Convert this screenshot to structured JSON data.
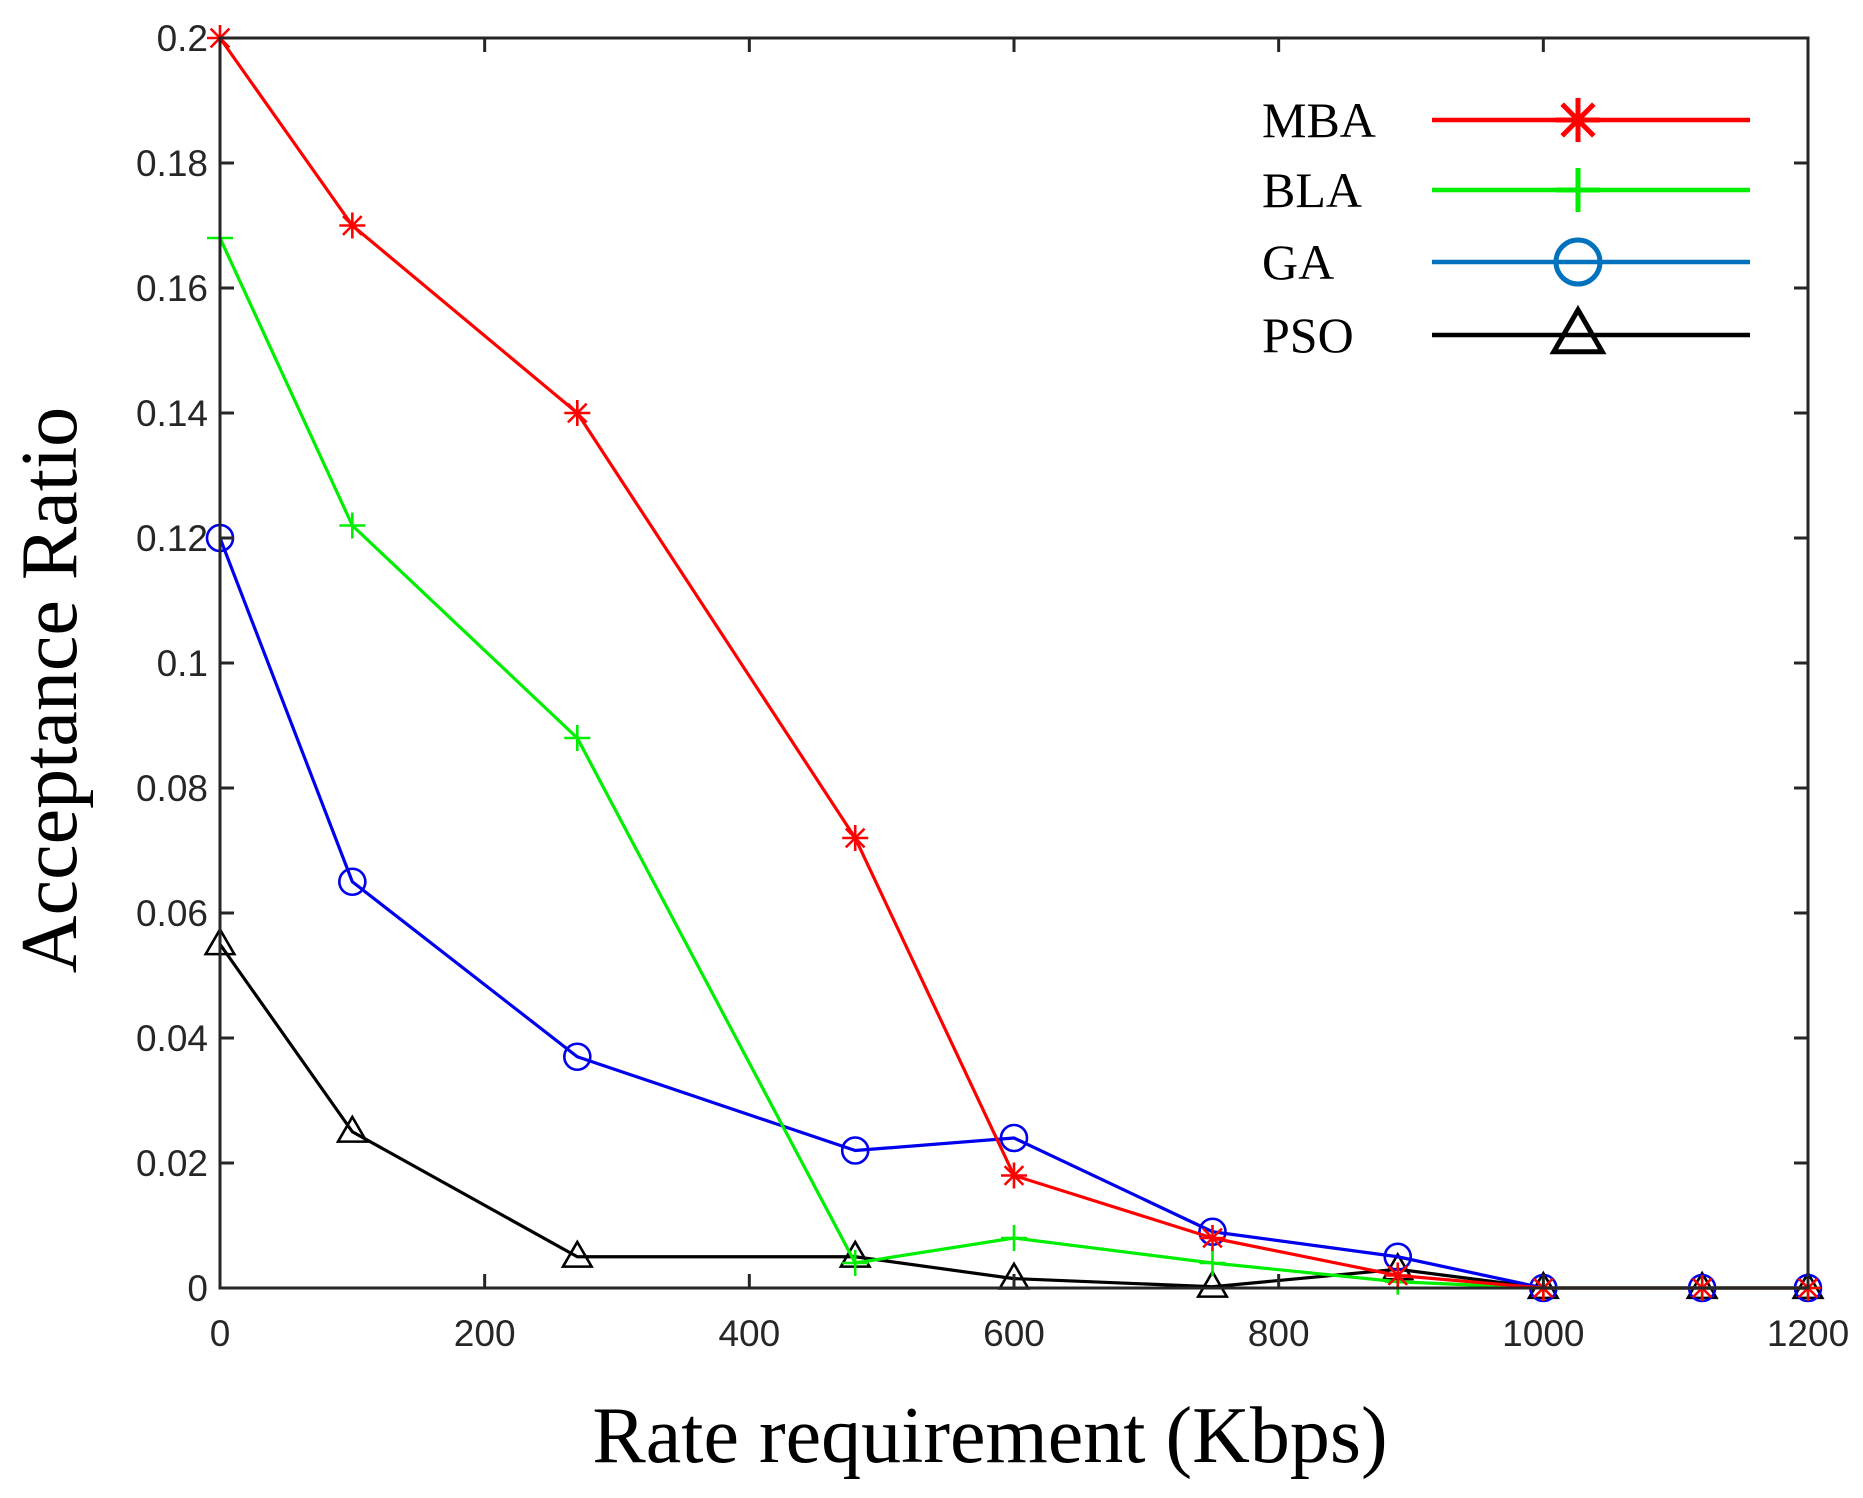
{
  "chart_data": {
    "type": "line",
    "title": "",
    "xlabel": "Rate requirement (Kbps)",
    "ylabel": "Acceptance Ratio",
    "xlim": [
      0,
      1200
    ],
    "ylim": [
      0,
      0.2
    ],
    "xticks": [
      0,
      200,
      400,
      600,
      800,
      1000,
      1200
    ],
    "xtick_labels": [
      "0",
      "200",
      "400",
      "600",
      "800",
      "1000",
      "1200"
    ],
    "yticks": [
      0,
      0.02,
      0.04,
      0.06,
      0.08,
      0.1,
      0.12,
      0.14,
      0.16,
      0.18,
      0.2
    ],
    "ytick_labels": [
      "0",
      "0.02",
      "0.04",
      "0.06",
      "0.08",
      "0.1",
      "0.12",
      "0.14",
      "0.16",
      "0.18",
      "0.2"
    ],
    "grid": false,
    "legend_position": "top-right",
    "series": [
      {
        "name": "MBA",
        "color": "#ff0000",
        "marker": "asterisk",
        "x": [
          0,
          100,
          270,
          480,
          600,
          750,
          890,
          1000,
          1120,
          1200
        ],
        "y": [
          0.2,
          0.17,
          0.14,
          0.072,
          0.018,
          0.008,
          0.002,
          0,
          0,
          0
        ]
      },
      {
        "name": "BLA",
        "color": "#00ee00",
        "marker": "plus",
        "x": [
          0,
          100,
          270,
          480,
          600,
          750,
          890,
          1000,
          1120,
          1200
        ],
        "y": [
          0.168,
          0.122,
          0.088,
          0.004,
          0.008,
          0.004,
          0.001,
          0,
          0,
          0
        ]
      },
      {
        "name": "GA",
        "color": "#0000ee",
        "legend_color": "#0072bd",
        "marker": "circle",
        "x": [
          0,
          100,
          270,
          480,
          600,
          750,
          890,
          1000,
          1120,
          1200
        ],
        "y": [
          0.12,
          0.065,
          0.037,
          0.022,
          0.024,
          0.009,
          0.005,
          0,
          0,
          0
        ]
      },
      {
        "name": "PSO",
        "color": "#000000",
        "marker": "triangle",
        "x": [
          0,
          100,
          270,
          480,
          600,
          750,
          890,
          1000,
          1120,
          1200
        ],
        "y": [
          0.055,
          0.025,
          0.005,
          0.005,
          0.0015,
          0.0002,
          0.003,
          0,
          0,
          0
        ]
      }
    ]
  }
}
